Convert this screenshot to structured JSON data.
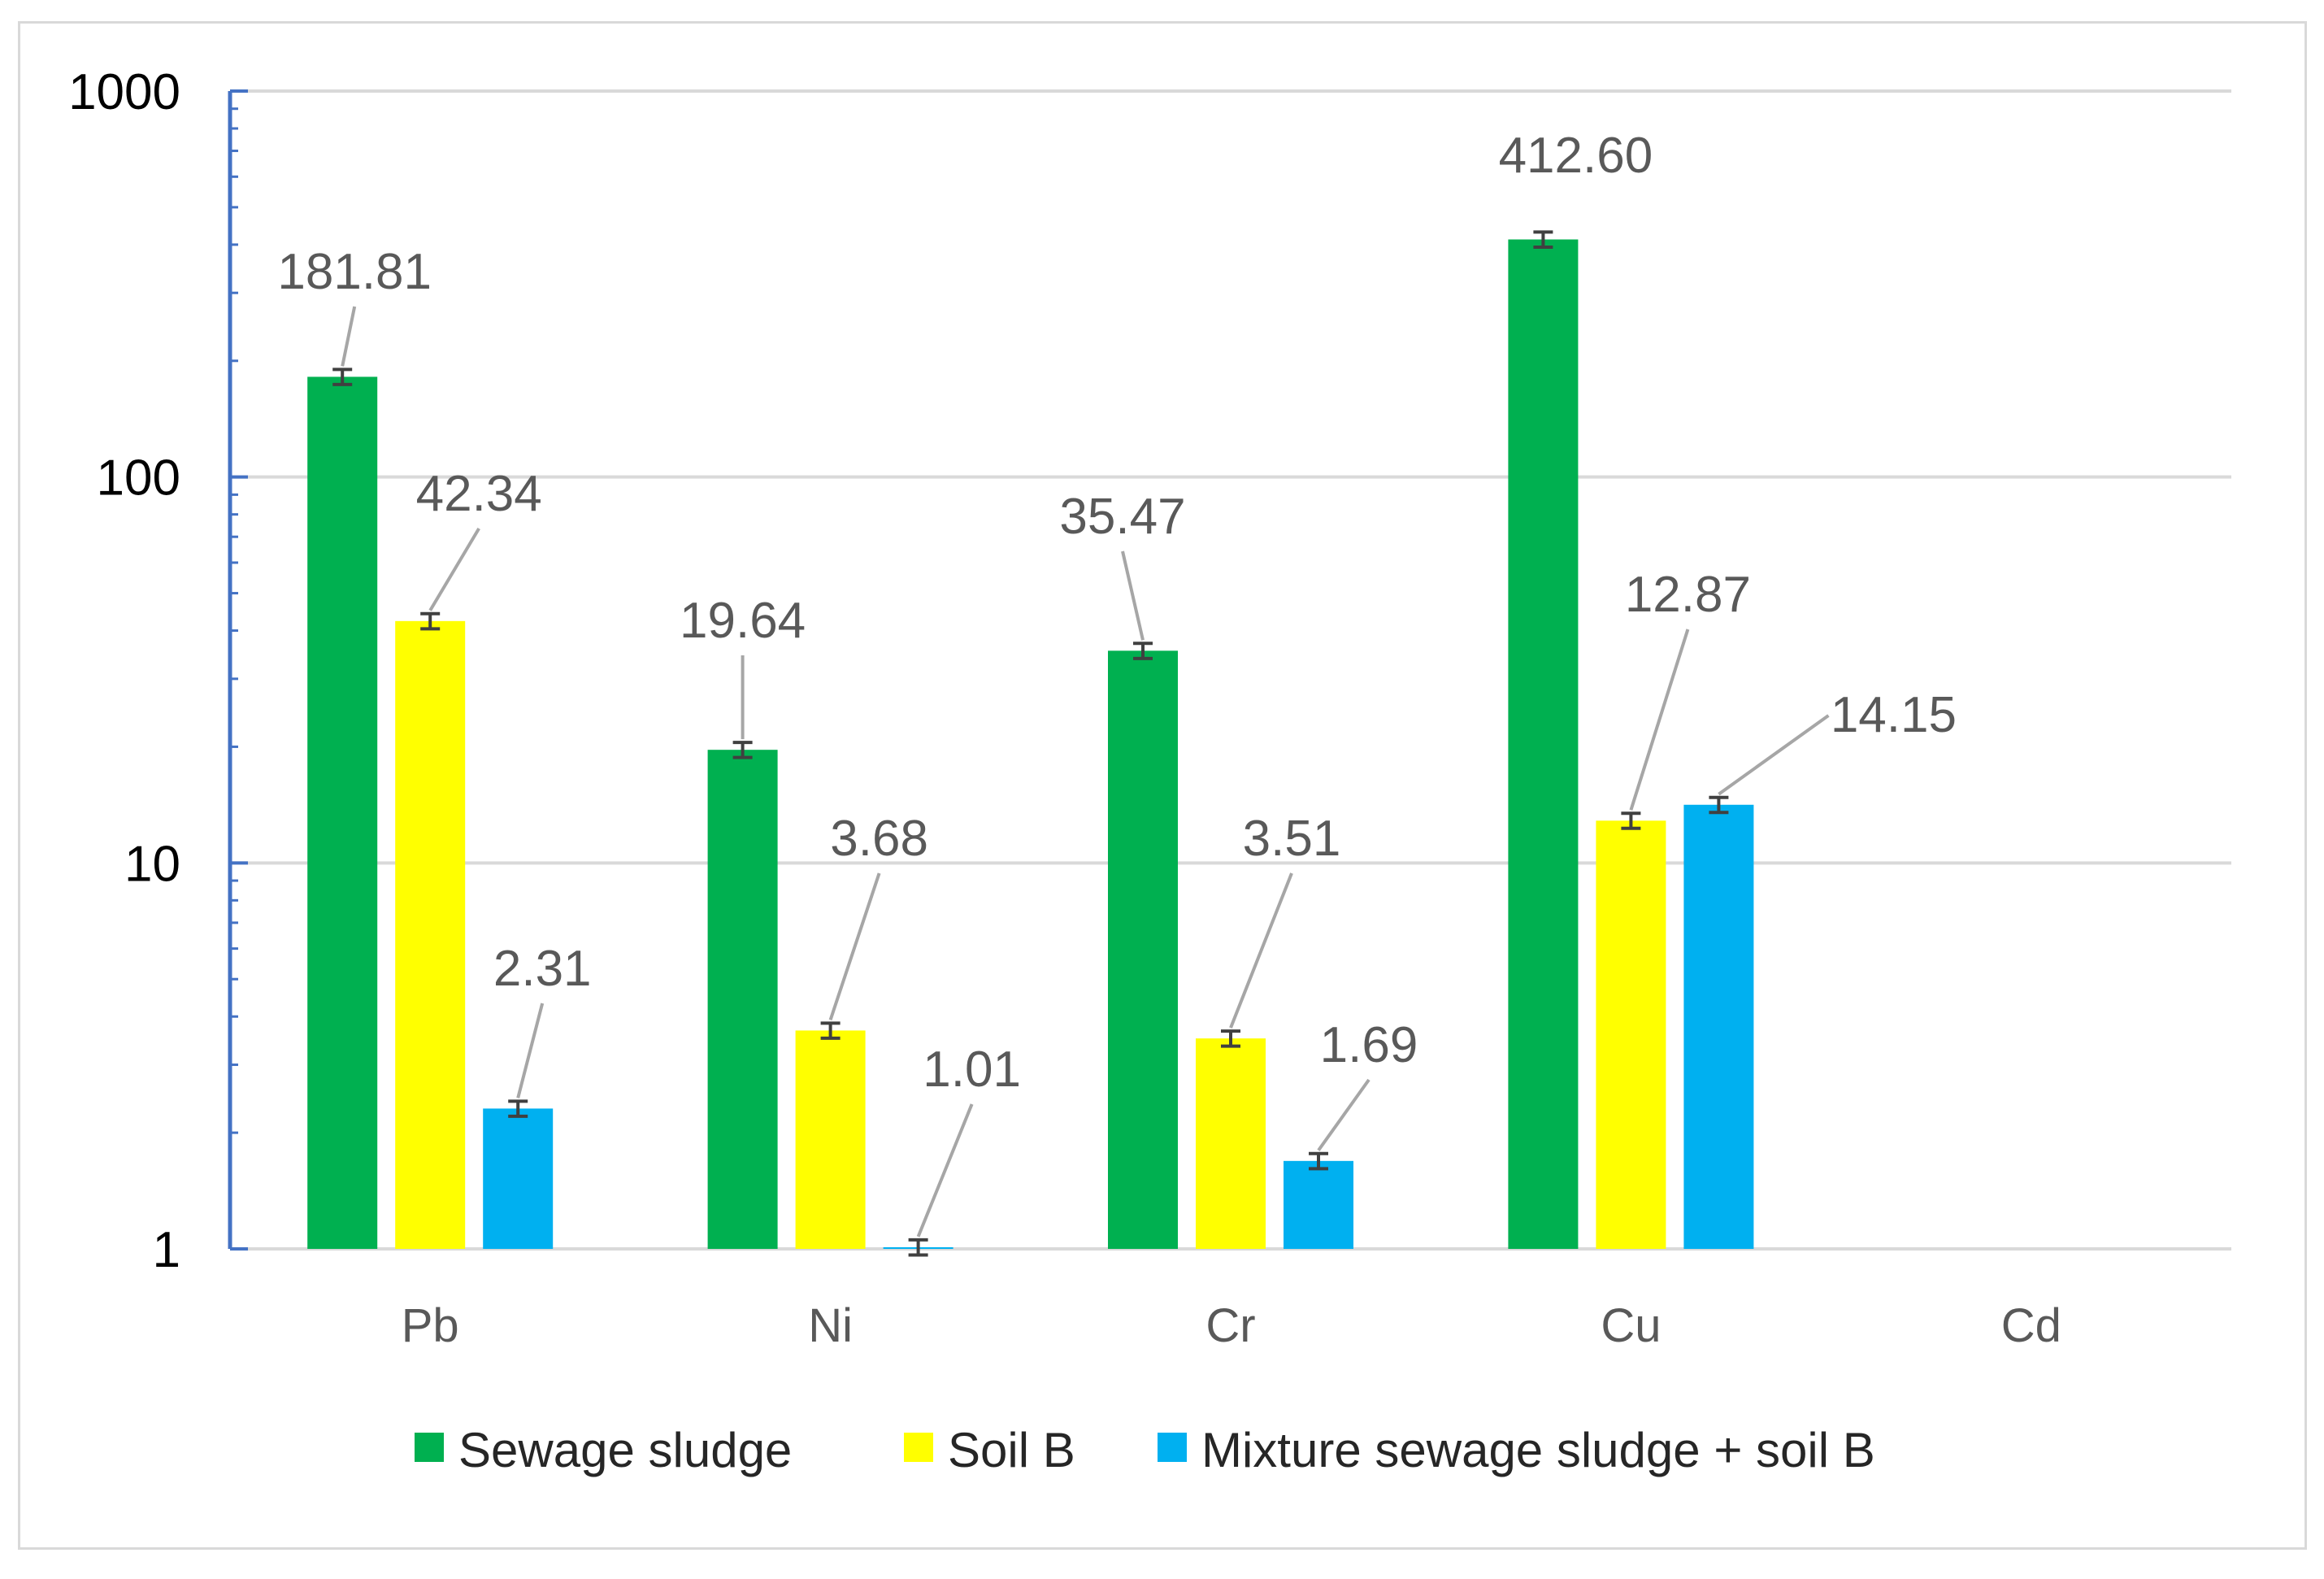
{
  "chart_data": {
    "type": "bar",
    "scale": "log",
    "ylim": [
      1,
      1000
    ],
    "yticks": [
      "1",
      "10",
      "100",
      "1000"
    ],
    "grid": true,
    "legend_position": "bottom",
    "categories": [
      "Pb",
      "Ni",
      "Cr",
      "Cu",
      "Cd"
    ],
    "series": [
      {
        "name": "Sewage sludge",
        "color": "#00B050",
        "values": [
          181.81,
          19.64,
          35.47,
          412.6,
          null
        ],
        "labels": [
          "181.81",
          "19.64",
          "35.47",
          "412.60",
          null
        ]
      },
      {
        "name": "Soil B",
        "color": "#FFFF00",
        "values": [
          42.34,
          3.68,
          3.51,
          12.87,
          null
        ],
        "labels": [
          "42.34",
          "3.68",
          "3.51",
          "12.87",
          null
        ]
      },
      {
        "name": "Mixture sewage sludge + soil B",
        "color": "#00B0F0",
        "values": [
          2.31,
          1.01,
          1.69,
          14.15,
          null
        ],
        "labels": [
          "2.31",
          "1.01",
          "1.69",
          "14.15",
          null
        ]
      }
    ],
    "axis_color": "#4472C4",
    "grid_color": "#d9d9d9",
    "leader_color": "#a6a6a6",
    "error_color": "#404040"
  }
}
